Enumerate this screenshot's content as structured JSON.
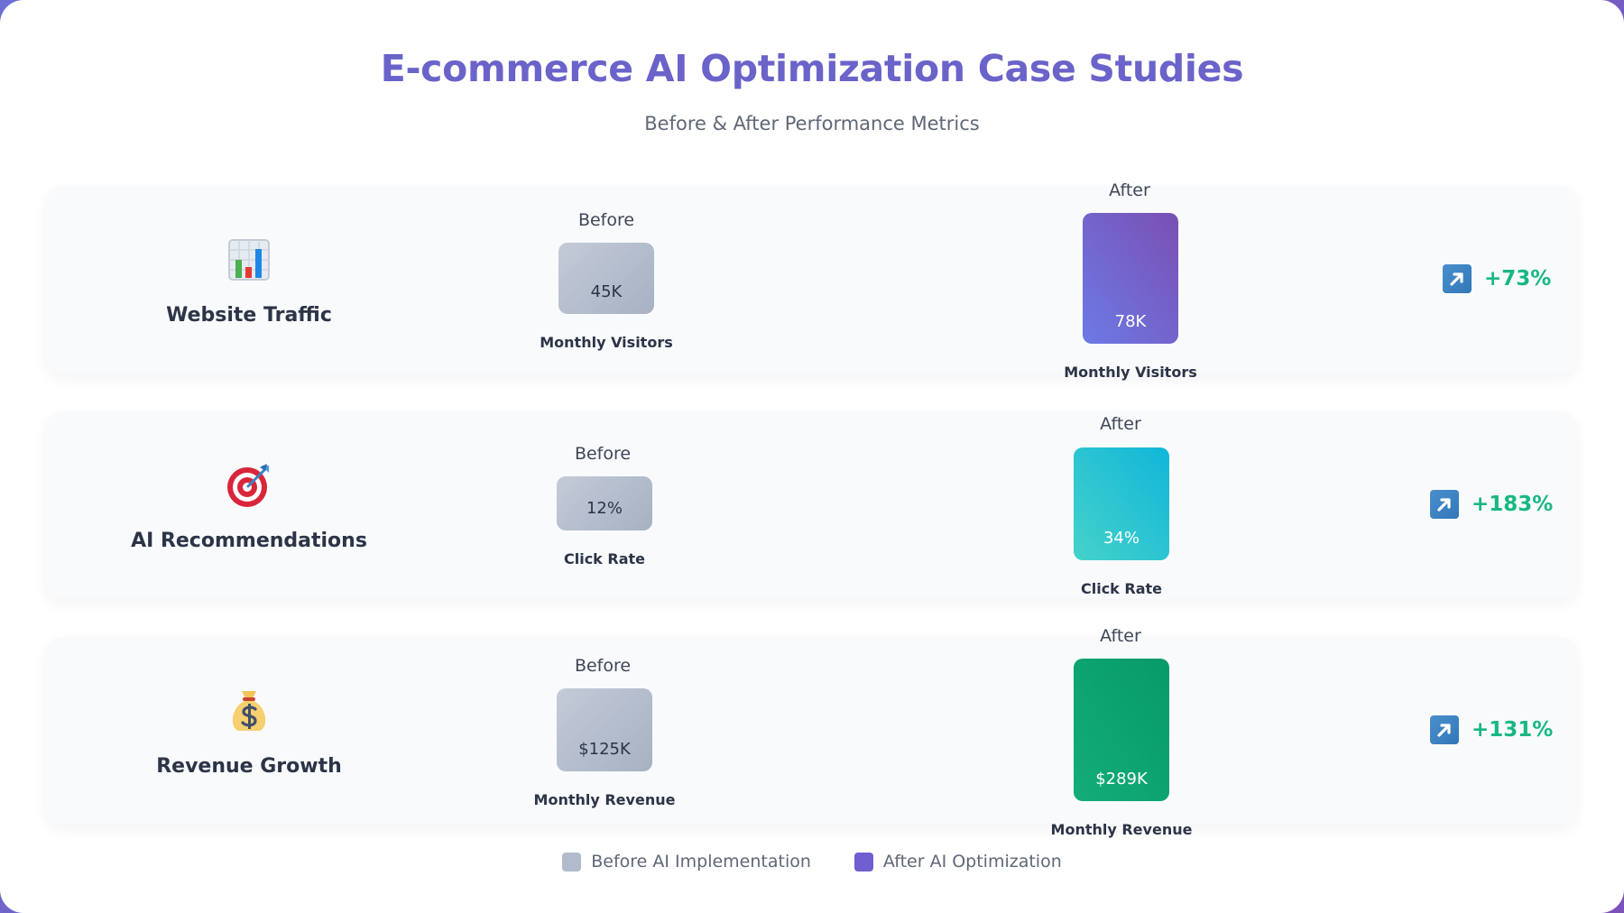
{
  "header": {
    "title": "E-commerce AI Optimization Case Studies",
    "subtitle": "Before & After Performance Metrics"
  },
  "labels": {
    "before": "Before",
    "after": "After"
  },
  "legend": {
    "before_label": "Before AI Implementation",
    "after_label": "After AI Optimization",
    "before_color": "#b1bbcb",
    "after_color": "#6f5fd0"
  },
  "rows": [
    {
      "label": "Website Traffic",
      "icon": "bar-chart-icon",
      "before_value": "45K",
      "after_value": "78K",
      "caption": "Monthly Visitors",
      "change": "+73%",
      "after_gradient": [
        "#6c7ae5",
        "#7a4fb3"
      ]
    },
    {
      "label": "AI Recommendations",
      "icon": "target-icon",
      "before_value": "12%",
      "after_value": "34%",
      "caption": "Click Rate",
      "change": "+183%",
      "after_gradient": [
        "#45d2c9",
        "#11b6da"
      ]
    },
    {
      "label": "Revenue Growth",
      "icon": "money-bag-icon",
      "before_value": "$125K",
      "after_value": "$289K",
      "caption": "Monthly Revenue",
      "change": "+131%",
      "after_gradient": [
        "#12ad7a",
        "#079a68"
      ]
    }
  ],
  "chart_data": {
    "type": "bar",
    "title": "E-commerce AI Optimization Case Studies",
    "subtitle": "Before & After Performance Metrics",
    "categories": [
      "Website Traffic",
      "AI Recommendations",
      "Revenue Growth"
    ],
    "series": [
      {
        "name": "Before AI Implementation",
        "values": [
          "45K",
          "12%",
          "$125K"
        ]
      },
      {
        "name": "After AI Optimization",
        "values": [
          "78K",
          "34%",
          "$289K"
        ]
      }
    ],
    "units": [
      "Monthly Visitors",
      "Click Rate",
      "Monthly Revenue"
    ],
    "changes": [
      "+73%",
      "+183%",
      "+131%"
    ],
    "legend_position": "bottom"
  }
}
